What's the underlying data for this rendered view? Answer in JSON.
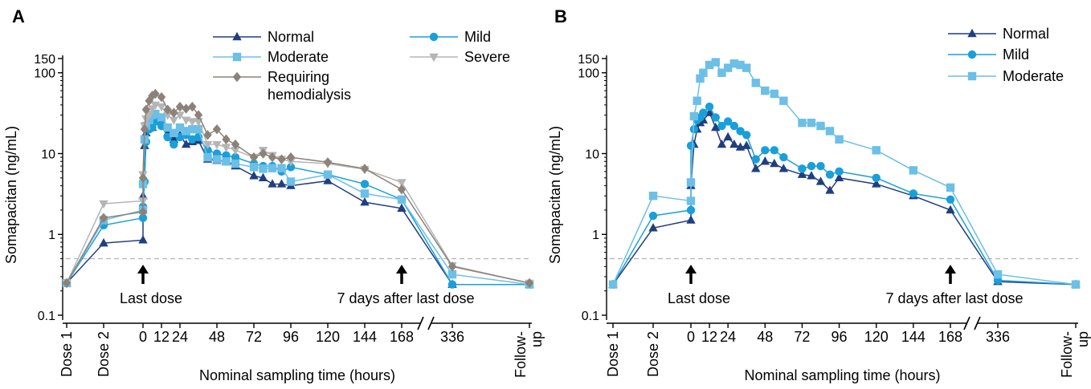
{
  "colors": {
    "normal": "#1f3f7f",
    "mild": "#1a9fd9",
    "moderate": "#6cbfe6",
    "severe": "#b5b5b5",
    "hemodialysis": "#8c8279",
    "lloq": "#b0b0b0"
  },
  "chart_data": [
    {
      "panel": "A",
      "type": "line",
      "xlabel": "Nominal sampling time (hours)",
      "ylabel": "Somapacitan (ng/mL)",
      "yscale": "log",
      "ylim": [
        0.1,
        150
      ],
      "yticks": [
        {
          "v": 0.1,
          "label": "0.1"
        },
        {
          "v": 1,
          "label": "1"
        },
        {
          "v": 10,
          "label": "10"
        },
        {
          "v": 100,
          "label": "100"
        },
        {
          "v": 150,
          "label": "150"
        }
      ],
      "xticks": [
        "Dose 1",
        "Dose 2",
        "0",
        "12",
        "24",
        "48",
        "72",
        "96",
        "120",
        "144",
        "168",
        "336",
        "Follow-up"
      ],
      "lloq": 0.5,
      "annotations": [
        {
          "text": "Last dose",
          "at": "0"
        },
        {
          "text": "7 days after last dose",
          "at": "168"
        }
      ],
      "legend": [
        "Normal",
        "Mild",
        "Moderate",
        "Severe",
        "Requiring hemodialysis"
      ],
      "series": [
        {
          "name": "Normal",
          "key": "normal",
          "marker": "triangle",
          "points": [
            [
              "D1",
              0.25
            ],
            [
              "D2",
              0.78
            ],
            [
              "P",
              0.85
            ],
            [
              0,
              3.0
            ],
            [
              1,
              12.5
            ],
            [
              2,
              18
            ],
            [
              4,
              22
            ],
            [
              6,
              21
            ],
            [
              8,
              25
            ],
            [
              12,
              26
            ],
            [
              16,
              18
            ],
            [
              20,
              15
            ],
            [
              24,
              17
            ],
            [
              28,
              13
            ],
            [
              32,
              14
            ],
            [
              36,
              14.5
            ],
            [
              42,
              8.5
            ],
            [
              48,
              8.2
            ],
            [
              54,
              8
            ],
            [
              60,
              7
            ],
            [
              72,
              5.3
            ],
            [
              78,
              5
            ],
            [
              84,
              4.2
            ],
            [
              90,
              4.2
            ],
            [
              96,
              4
            ],
            [
              120,
              4.6
            ],
            [
              144,
              2.5
            ],
            [
              168,
              2.1
            ],
            [
              336,
              0.24
            ],
            [
              "FU",
              0.24
            ]
          ]
        },
        {
          "name": "Mild",
          "key": "mild",
          "marker": "circle",
          "points": [
            [
              "D1",
              0.25
            ],
            [
              "D2",
              1.3
            ],
            [
              "P",
              1.6
            ],
            [
              0,
              2.2
            ],
            [
              1,
              4.5
            ],
            [
              2,
              14
            ],
            [
              4,
              20
            ],
            [
              6,
              21
            ],
            [
              8,
              25
            ],
            [
              12,
              22
            ],
            [
              16,
              16
            ],
            [
              20,
              13
            ],
            [
              24,
              16
            ],
            [
              28,
              17
            ],
            [
              32,
              15
            ],
            [
              36,
              16
            ],
            [
              42,
              11
            ],
            [
              48,
              10
            ],
            [
              54,
              9.5
            ],
            [
              60,
              9
            ],
            [
              72,
              7.5
            ],
            [
              78,
              7
            ],
            [
              84,
              7
            ],
            [
              90,
              6
            ],
            [
              96,
              6.8
            ],
            [
              120,
              5.5
            ],
            [
              144,
              4.2
            ],
            [
              168,
              2.7
            ],
            [
              336,
              0.24
            ],
            [
              "FU",
              0.24
            ]
          ]
        },
        {
          "name": "Moderate",
          "key": "moderate",
          "marker": "square",
          "points": [
            [
              "D1",
              0.25
            ],
            [
              "D2",
              1.5
            ],
            [
              "P",
              2.0
            ],
            [
              0,
              4.2
            ],
            [
              1,
              15
            ],
            [
              2,
              22
            ],
            [
              4,
              26
            ],
            [
              6,
              30
            ],
            [
              8,
              31
            ],
            [
              12,
              28
            ],
            [
              16,
              21
            ],
            [
              20,
              18
            ],
            [
              24,
              21
            ],
            [
              28,
              19
            ],
            [
              32,
              20
            ],
            [
              36,
              20
            ],
            [
              42,
              9
            ],
            [
              48,
              8.5
            ],
            [
              54,
              8
            ],
            [
              60,
              7.5
            ],
            [
              72,
              6.8
            ],
            [
              78,
              6.5
            ],
            [
              84,
              6.6
            ],
            [
              90,
              6.6
            ],
            [
              96,
              4.5
            ],
            [
              120,
              5.5
            ],
            [
              144,
              3.2
            ],
            [
              168,
              2.7
            ],
            [
              336,
              0.32
            ],
            [
              "FU",
              0.24
            ]
          ]
        },
        {
          "name": "Severe",
          "key": "severe",
          "marker": "triangle-down",
          "points": [
            [
              "D1",
              0.25
            ],
            [
              "D2",
              2.4
            ],
            [
              "P",
              2.6
            ],
            [
              0,
              5.5
            ],
            [
              1,
              22
            ],
            [
              2,
              27
            ],
            [
              4,
              30
            ],
            [
              6,
              36
            ],
            [
              8,
              40
            ],
            [
              12,
              38
            ],
            [
              16,
              30
            ],
            [
              20,
              26
            ],
            [
              24,
              30
            ],
            [
              28,
              26
            ],
            [
              32,
              25
            ],
            [
              36,
              25
            ],
            [
              42,
              13
            ],
            [
              48,
              13
            ],
            [
              54,
              12
            ],
            [
              60,
              11
            ],
            [
              72,
              9
            ],
            [
              78,
              11
            ],
            [
              84,
              9.5
            ],
            [
              90,
              8.5
            ],
            [
              96,
              8
            ],
            [
              120,
              7.5
            ],
            [
              144,
              6.4
            ],
            [
              168,
              4.4
            ],
            [
              336,
              0.41
            ],
            [
              "FU",
              0.25
            ]
          ]
        },
        {
          "name": "Requiring hemodialysis",
          "key": "hemodialysis",
          "marker": "diamond",
          "points": [
            [
              "D1",
              0.25
            ],
            [
              "D2",
              1.6
            ],
            [
              "P",
              1.9
            ],
            [
              0,
              5.0
            ],
            [
              1,
              20
            ],
            [
              2,
              35
            ],
            [
              4,
              45
            ],
            [
              6,
              52
            ],
            [
              8,
              55
            ],
            [
              12,
              50
            ],
            [
              16,
              35
            ],
            [
              20,
              32
            ],
            [
              24,
              38
            ],
            [
              28,
              36
            ],
            [
              32,
              38
            ],
            [
              36,
              30
            ],
            [
              42,
              17
            ],
            [
              48,
              20
            ],
            [
              54,
              15
            ],
            [
              60,
              13
            ],
            [
              72,
              9
            ],
            [
              78,
              10
            ],
            [
              84,
              9
            ],
            [
              90,
              8.5
            ],
            [
              96,
              9
            ],
            [
              120,
              7.8
            ],
            [
              144,
              6.5
            ],
            [
              168,
              3.6
            ],
            [
              336,
              0.4
            ],
            [
              "FU",
              0.25
            ]
          ]
        }
      ]
    },
    {
      "panel": "B",
      "type": "line",
      "xlabel": "Nominal sampling time (hours)",
      "ylabel": "Somapacitan (ng/mL)",
      "yscale": "log",
      "ylim": [
        0.1,
        150
      ],
      "yticks": [
        {
          "v": 0.1,
          "label": "0.1"
        },
        {
          "v": 1,
          "label": "1"
        },
        {
          "v": 10,
          "label": "10"
        },
        {
          "v": 100,
          "label": "100"
        },
        {
          "v": 150,
          "label": "150"
        }
      ],
      "xticks": [
        "Dose 1",
        "Dose 2",
        "0",
        "12",
        "24",
        "48",
        "72",
        "96",
        "120",
        "144",
        "168",
        "336",
        "Follow-up"
      ],
      "lloq": 0.5,
      "annotations": [
        {
          "text": "Last dose",
          "at": "0"
        },
        {
          "text": "7 days after last dose",
          "at": "168"
        }
      ],
      "legend": [
        "Normal",
        "Mild",
        "Moderate"
      ],
      "series": [
        {
          "name": "Normal",
          "key": "normal",
          "marker": "triangle",
          "points": [
            [
              "D1",
              0.24
            ],
            [
              "D2",
              1.2
            ],
            [
              "P",
              1.5
            ],
            [
              0,
              4
            ],
            [
              2,
              13
            ],
            [
              4,
              20
            ],
            [
              6,
              24
            ],
            [
              8,
              26
            ],
            [
              12,
              32
            ],
            [
              16,
              21
            ],
            [
              20,
              13
            ],
            [
              24,
              16
            ],
            [
              28,
              13
            ],
            [
              32,
              12
            ],
            [
              36,
              12.5
            ],
            [
              42,
              6.5
            ],
            [
              48,
              8
            ],
            [
              54,
              7.5
            ],
            [
              60,
              6.5
            ],
            [
              72,
              5.5
            ],
            [
              78,
              5.3
            ],
            [
              84,
              4.5
            ],
            [
              90,
              3.5
            ],
            [
              96,
              5
            ],
            [
              120,
              4.2
            ],
            [
              144,
              3
            ],
            [
              168,
              2.0
            ],
            [
              336,
              0.26
            ],
            [
              "FU",
              0.24
            ]
          ]
        },
        {
          "name": "Mild",
          "key": "mild",
          "marker": "circle",
          "points": [
            [
              "D1",
              0.24
            ],
            [
              "D2",
              1.7
            ],
            [
              "P",
              2.0
            ],
            [
              0,
              12.5
            ],
            [
              2,
              20
            ],
            [
              4,
              26
            ],
            [
              6,
              28
            ],
            [
              8,
              32
            ],
            [
              12,
              38
            ],
            [
              16,
              28
            ],
            [
              20,
              22
            ],
            [
              24,
              25
            ],
            [
              28,
              22
            ],
            [
              32,
              19
            ],
            [
              36,
              17
            ],
            [
              42,
              8.5
            ],
            [
              48,
              11
            ],
            [
              54,
              11
            ],
            [
              60,
              9
            ],
            [
              72,
              6.5
            ],
            [
              78,
              7
            ],
            [
              84,
              7
            ],
            [
              90,
              5.5
            ],
            [
              96,
              6
            ],
            [
              120,
              5
            ],
            [
              144,
              3.2
            ],
            [
              168,
              2.7
            ],
            [
              336,
              0.27
            ],
            [
              "FU",
              0.24
            ]
          ]
        },
        {
          "name": "Moderate",
          "key": "moderate",
          "marker": "square",
          "points": [
            [
              "D1",
              0.24
            ],
            [
              "D2",
              3.0
            ],
            [
              "P",
              2.6
            ],
            [
              0,
              4.4
            ],
            [
              2,
              29
            ],
            [
              4,
              45
            ],
            [
              6,
              85
            ],
            [
              8,
              100
            ],
            [
              12,
              125
            ],
            [
              16,
              135
            ],
            [
              20,
              100
            ],
            [
              24,
              115
            ],
            [
              28,
              130
            ],
            [
              32,
              125
            ],
            [
              36,
              115
            ],
            [
              42,
              75
            ],
            [
              48,
              60
            ],
            [
              54,
              55
            ],
            [
              60,
              45
            ],
            [
              72,
              24
            ],
            [
              78,
              24
            ],
            [
              84,
              22
            ],
            [
              90,
              19
            ],
            [
              96,
              15
            ],
            [
              120,
              11
            ],
            [
              144,
              6.2
            ],
            [
              168,
              3.8
            ],
            [
              336,
              0.32
            ],
            [
              "FU",
              0.24
            ]
          ]
        }
      ]
    }
  ]
}
